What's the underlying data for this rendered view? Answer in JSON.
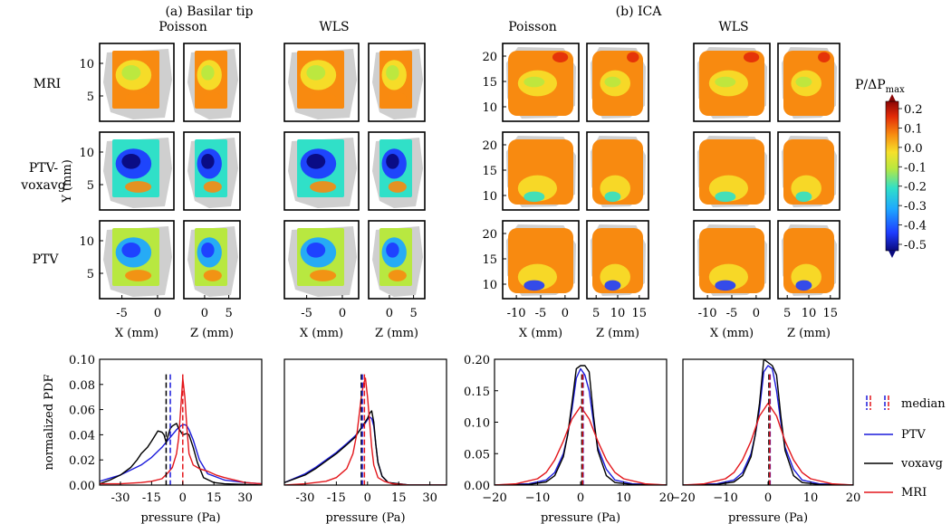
{
  "panels": {
    "a": {
      "title": "(a) Basilar tip"
    },
    "b": {
      "title": "(b) ICA"
    }
  },
  "method_labels": [
    "Poisson",
    "WLS",
    "Poisson",
    "WLS"
  ],
  "row_labels": {
    "mri": "MRI",
    "voxavg_1": "PTV-",
    "voxavg_2": "voxavg",
    "ptv": "PTV"
  },
  "y_axis_label": "Y (mm)",
  "colorbar": {
    "label": "P/ΔP",
    "label_sub": "max",
    "ticks": [
      "0.2",
      "0.1",
      "0.0",
      "-0.1",
      "-0.2",
      "-0.3",
      "-0.4",
      "-0.5"
    ],
    "range": [
      -0.5,
      0.2
    ]
  },
  "legend": {
    "median": "median",
    "ptv": "PTV",
    "voxavg": "voxavg",
    "mri": "MRI"
  },
  "colors": {
    "ptv": "#1a1adb",
    "voxavg": "#000000",
    "mri": "#e3161b",
    "mask": "#cfcfcf"
  },
  "map_axes": {
    "basilar": {
      "x": {
        "label": "X (mm)",
        "ticks": [
          "-5",
          "0"
        ]
      },
      "z": {
        "label": "Z (mm)",
        "ticks": [
          "0",
          "5"
        ]
      },
      "y_ticks": [
        "10",
        "5"
      ]
    },
    "ica": {
      "x": {
        "label": "X (mm)",
        "ticks": [
          "-10",
          "-5",
          "0"
        ]
      },
      "z": {
        "label": "Z (mm)",
        "ticks": [
          "5",
          "10",
          "15"
        ]
      },
      "y_ticks": [
        "20",
        "15",
        "10"
      ]
    }
  },
  "chart_data": [
    {
      "type": "line",
      "title": "Basilar tip — Poisson",
      "xlabel": "pressure (Pa)",
      "ylabel": "normalized PDF",
      "xlim": [
        -40,
        38
      ],
      "ylim": [
        0,
        0.1
      ],
      "xticks": [
        "-30",
        "-15",
        "0",
        "15",
        "30"
      ],
      "yticks": [
        "0.10",
        "0.08",
        "0.06",
        "0.04",
        "0.02",
        "0.00"
      ],
      "medians": {
        "voxavg": -8,
        "ptv": -6,
        "mri": 0
      },
      "series": [
        {
          "name": "PTV",
          "x": [
            -40,
            -30,
            -20,
            -15,
            -10,
            -7,
            -5,
            -3,
            -1,
            0,
            1,
            2,
            3,
            5,
            8,
            12,
            20,
            30,
            38
          ],
          "y": [
            0.003,
            0.008,
            0.016,
            0.022,
            0.03,
            0.036,
            0.04,
            0.044,
            0.047,
            0.048,
            0.048,
            0.047,
            0.044,
            0.036,
            0.02,
            0.009,
            0.004,
            0.002,
            0.001
          ]
        },
        {
          "name": "voxavg",
          "x": [
            -40,
            -35,
            -30,
            -25,
            -22,
            -20,
            -17,
            -15,
            -12,
            -10,
            -9,
            -8,
            -6,
            -5,
            -3,
            -2,
            0,
            2,
            3,
            5,
            7,
            10,
            15,
            20,
            38
          ],
          "y": [
            0.001,
            0.004,
            0.008,
            0.014,
            0.02,
            0.025,
            0.03,
            0.035,
            0.043,
            0.042,
            0.04,
            0.034,
            0.045,
            0.047,
            0.049,
            0.045,
            0.04,
            0.041,
            0.04,
            0.03,
            0.018,
            0.006,
            0.002,
            0.001,
            0
          ]
        },
        {
          "name": "MRI",
          "x": [
            -40,
            -30,
            -20,
            -15,
            -10,
            -7,
            -5,
            -3,
            -2,
            -1,
            0,
            1,
            2,
            3,
            5,
            8,
            12,
            16,
            20,
            25,
            30,
            38
          ],
          "y": [
            0.001,
            0.001,
            0.002,
            0.003,
            0.005,
            0.01,
            0.014,
            0.025,
            0.037,
            0.06,
            0.085,
            0.07,
            0.045,
            0.025,
            0.016,
            0.013,
            0.011,
            0.008,
            0.006,
            0.004,
            0.002,
            0.001
          ]
        }
      ]
    },
    {
      "type": "line",
      "title": "Basilar tip — WLS",
      "xlabel": "pressure (Pa)",
      "ylabel": "",
      "xlim": [
        -40,
        38
      ],
      "ylim": [
        0,
        0.1
      ],
      "xticks": [
        "-30",
        "-15",
        "0",
        "15",
        "30"
      ],
      "yticks": [],
      "medians": {
        "voxavg": -3,
        "ptv": -2.5,
        "mri": -1.5
      },
      "series": [
        {
          "name": "PTV",
          "x": [
            -40,
            -30,
            -25,
            -20,
            -15,
            -10,
            -6,
            -4,
            -2,
            0,
            1,
            2,
            3,
            4,
            5,
            7,
            10,
            15,
            20,
            30,
            38
          ],
          "y": [
            0.002,
            0.009,
            0.014,
            0.02,
            0.026,
            0.033,
            0.039,
            0.043,
            0.047,
            0.052,
            0.054,
            0.053,
            0.047,
            0.032,
            0.018,
            0.007,
            0.002,
            0.001,
            0,
            0,
            0
          ]
        },
        {
          "name": "voxavg",
          "x": [
            -40,
            -30,
            -25,
            -20,
            -15,
            -10,
            -6,
            -4,
            -2,
            0,
            1,
            2,
            3,
            4,
            5,
            7,
            10,
            15,
            20,
            30,
            38
          ],
          "y": [
            0.002,
            0.008,
            0.013,
            0.019,
            0.025,
            0.032,
            0.038,
            0.043,
            0.048,
            0.053,
            0.057,
            0.059,
            0.05,
            0.032,
            0.018,
            0.007,
            0.002,
            0.001,
            0,
            0,
            0
          ]
        },
        {
          "name": "MRI",
          "x": [
            -40,
            -30,
            -20,
            -15,
            -10,
            -7,
            -5,
            -3,
            -2,
            -1,
            0,
            1,
            2,
            3,
            5,
            8,
            12,
            20,
            30,
            38
          ],
          "y": [
            0,
            0.001,
            0.003,
            0.006,
            0.013,
            0.025,
            0.042,
            0.07,
            0.08,
            0.085,
            0.07,
            0.05,
            0.03,
            0.016,
            0.006,
            0.003,
            0.001,
            0,
            0,
            0
          ]
        }
      ]
    },
    {
      "type": "line",
      "title": "ICA — Poisson",
      "xlabel": "pressure (Pa)",
      "ylabel": "",
      "xlim": [
        -20,
        20
      ],
      "ylim": [
        0,
        0.2
      ],
      "xticks": [
        "−20",
        "−10",
        "0",
        "10",
        "20"
      ],
      "yticks": [
        "0.20",
        "0.15",
        "0.10",
        "0.05",
        "0.00"
      ],
      "medians": {
        "voxavg": 0.3,
        "ptv": 0.6,
        "mri": 0.5
      },
      "series": [
        {
          "name": "PTV",
          "x": [
            -20,
            -12,
            -8,
            -6,
            -4,
            -3,
            -2,
            -1,
            0,
            1,
            2,
            3,
            4,
            6,
            8,
            12,
            20
          ],
          "y": [
            0,
            0.002,
            0.008,
            0.02,
            0.05,
            0.08,
            0.12,
            0.17,
            0.185,
            0.175,
            0.15,
            0.1,
            0.06,
            0.025,
            0.008,
            0.002,
            0
          ]
        },
        {
          "name": "voxavg",
          "x": [
            -20,
            -12,
            -8,
            -6,
            -4,
            -3,
            -2,
            -1,
            0,
            1,
            2,
            3,
            4,
            6,
            8,
            12,
            20
          ],
          "y": [
            0,
            0.001,
            0.005,
            0.015,
            0.045,
            0.08,
            0.13,
            0.185,
            0.19,
            0.19,
            0.18,
            0.11,
            0.055,
            0.015,
            0.004,
            0.001,
            0
          ]
        },
        {
          "name": "MRI",
          "x": [
            -20,
            -15,
            -10,
            -8,
            -6,
            -4,
            -2,
            0,
            2,
            4,
            6,
            8,
            10,
            15,
            20
          ],
          "y": [
            0,
            0.002,
            0.01,
            0.02,
            0.04,
            0.07,
            0.105,
            0.125,
            0.105,
            0.07,
            0.04,
            0.02,
            0.01,
            0.002,
            0
          ]
        }
      ]
    },
    {
      "type": "line",
      "title": "ICA — WLS",
      "xlabel": "pressure (Pa)",
      "ylabel": "",
      "xlim": [
        -20,
        20
      ],
      "ylim": [
        0,
        0.2
      ],
      "xticks": [
        "−20",
        "−10",
        "0",
        "10",
        "20"
      ],
      "yticks": [],
      "medians": {
        "voxavg": 0.2,
        "ptv": 0.5,
        "mri": 0.4
      },
      "series": [
        {
          "name": "PTV",
          "x": [
            -20,
            -12,
            -8,
            -6,
            -4,
            -3,
            -2,
            -1,
            0,
            1,
            2,
            3,
            4,
            6,
            8,
            12,
            20
          ],
          "y": [
            0,
            0.002,
            0.008,
            0.02,
            0.05,
            0.08,
            0.12,
            0.18,
            0.19,
            0.185,
            0.15,
            0.1,
            0.06,
            0.025,
            0.008,
            0.002,
            0
          ]
        },
        {
          "name": "voxavg",
          "x": [
            -20,
            -12,
            -8,
            -6,
            -4,
            -3,
            -2,
            -1,
            0,
            1,
            2,
            3,
            4,
            6,
            8,
            12,
            20
          ],
          "y": [
            0,
            0.001,
            0.005,
            0.015,
            0.045,
            0.08,
            0.13,
            0.2,
            0.195,
            0.19,
            0.175,
            0.11,
            0.055,
            0.015,
            0.004,
            0.001,
            0
          ]
        },
        {
          "name": "MRI",
          "x": [
            -20,
            -15,
            -10,
            -8,
            -6,
            -4,
            -2,
            0,
            2,
            4,
            6,
            8,
            10,
            15,
            20
          ],
          "y": [
            0,
            0.002,
            0.01,
            0.02,
            0.04,
            0.07,
            0.11,
            0.13,
            0.11,
            0.07,
            0.04,
            0.02,
            0.01,
            0.002,
            0
          ]
        }
      ]
    }
  ]
}
